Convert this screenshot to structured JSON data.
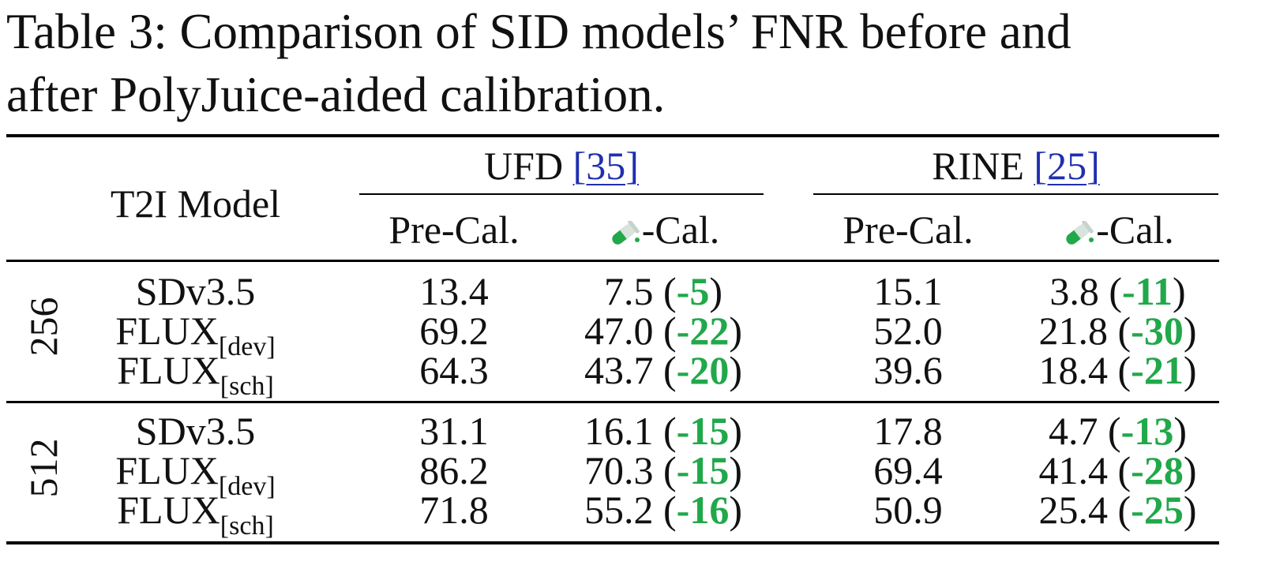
{
  "caption": {
    "line1": "Table 3: Comparison of SID models’ FNR before and",
    "line2": "after PolyJuice-aided calibration."
  },
  "header": {
    "model_label": "T2I Model",
    "groups": [
      {
        "name": "UFD",
        "cite": "[35]"
      },
      {
        "name": "RINE",
        "cite": "[25]"
      }
    ],
    "pre_label": "Pre-Cal.",
    "cal_label": "-Cal.",
    "cal_icon": "test-tube-icon"
  },
  "accent_color": "#21a84a",
  "link_color": "#1f2fb0",
  "sections": [
    {
      "label": "256",
      "rows": [
        {
          "model": "SDv3.5",
          "sub": "",
          "ufd_pre": "13.4",
          "ufd_cal": "7.5",
          "ufd_delta": "-5",
          "rine_pre": "15.1",
          "rine_cal": "3.8",
          "rine_delta": "-11"
        },
        {
          "model": "FLUX",
          "sub": "[dev]",
          "ufd_pre": "69.2",
          "ufd_cal": "47.0",
          "ufd_delta": "-22",
          "rine_pre": "52.0",
          "rine_cal": "21.8",
          "rine_delta": "-30"
        },
        {
          "model": "FLUX",
          "sub": "[sch]",
          "ufd_pre": "64.3",
          "ufd_cal": "43.7",
          "ufd_delta": "-20",
          "rine_pre": "39.6",
          "rine_cal": "18.4",
          "rine_delta": "-21"
        }
      ]
    },
    {
      "label": "512",
      "rows": [
        {
          "model": "SDv3.5",
          "sub": "",
          "ufd_pre": "31.1",
          "ufd_cal": "16.1",
          "ufd_delta": "-15",
          "rine_pre": "17.8",
          "rine_cal": "4.7",
          "rine_delta": "-13"
        },
        {
          "model": "FLUX",
          "sub": "[dev]",
          "ufd_pre": "86.2",
          "ufd_cal": "70.3",
          "ufd_delta": "-15",
          "rine_pre": "69.4",
          "rine_cal": "41.4",
          "rine_delta": "-28"
        },
        {
          "model": "FLUX",
          "sub": "[sch]",
          "ufd_pre": "71.8",
          "ufd_cal": "55.2",
          "ufd_delta": "-16",
          "rine_pre": "50.9",
          "rine_cal": "25.4",
          "rine_delta": "-25"
        }
      ]
    }
  ]
}
